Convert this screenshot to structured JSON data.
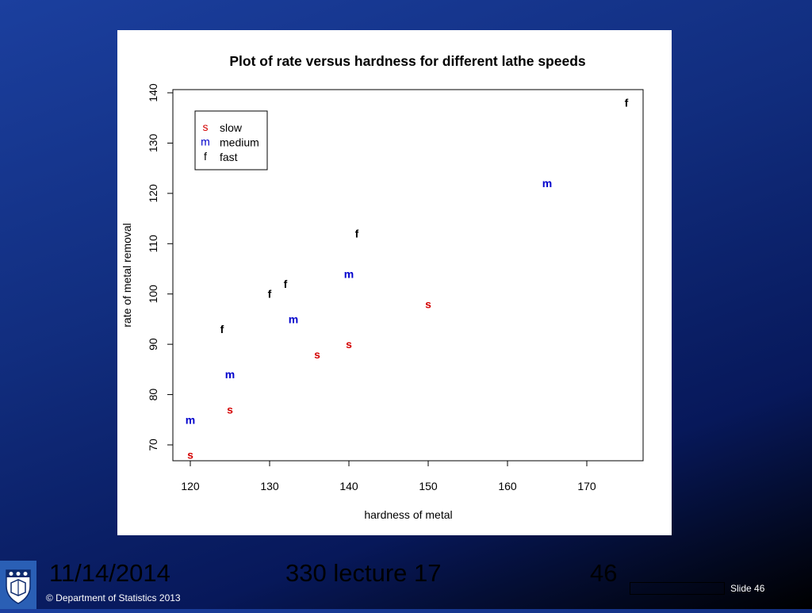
{
  "footer": {
    "date": "11/14/2014",
    "lecture": "330 lecture 17",
    "page_number": "46",
    "slide_label": "Slide 46",
    "copyright": "© Department of Statistics 2013"
  },
  "colors": {
    "slow": "#d40000",
    "medium": "#0000cc",
    "fast": "#000000"
  },
  "chart_data": {
    "type": "scatter",
    "title": "Plot of rate versus hardness for different lathe speeds",
    "xlabel": "hardness of metal",
    "ylabel": "rate of metal removal",
    "xlim": [
      120,
      175
    ],
    "ylim": [
      65,
      140
    ],
    "xticks": [
      120,
      130,
      140,
      150,
      160,
      170
    ],
    "yticks": [
      70,
      80,
      90,
      100,
      110,
      120,
      130,
      140
    ],
    "grid": false,
    "legend": {
      "position": "top-left",
      "entries": [
        {
          "symbol": "s",
          "label": "slow",
          "series": "slow"
        },
        {
          "symbol": "m",
          "label": "medium",
          "series": "medium"
        },
        {
          "symbol": "f",
          "label": "fast",
          "series": "fast"
        }
      ]
    },
    "series": [
      {
        "name": "slow",
        "symbol": "s",
        "points": [
          {
            "x": 120,
            "y": 68
          },
          {
            "x": 125,
            "y": 77
          },
          {
            "x": 136,
            "y": 88
          },
          {
            "x": 140,
            "y": 90
          },
          {
            "x": 150,
            "y": 98
          }
        ]
      },
      {
        "name": "medium",
        "symbol": "m",
        "points": [
          {
            "x": 120,
            "y": 75
          },
          {
            "x": 125,
            "y": 84
          },
          {
            "x": 133,
            "y": 95
          },
          {
            "x": 140,
            "y": 104
          },
          {
            "x": 165,
            "y": 122
          }
        ]
      },
      {
        "name": "fast",
        "symbol": "f",
        "points": [
          {
            "x": 124,
            "y": 93
          },
          {
            "x": 130,
            "y": 100
          },
          {
            "x": 132,
            "y": 102
          },
          {
            "x": 141,
            "y": 112
          },
          {
            "x": 175,
            "y": 138
          }
        ]
      }
    ]
  }
}
